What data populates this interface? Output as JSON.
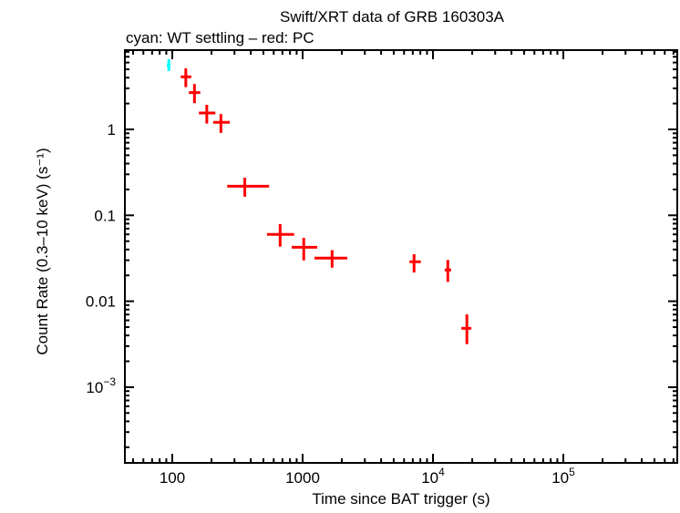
{
  "chart_data": {
    "type": "scatter",
    "title": "Swift/XRT data of GRB 160303A",
    "subtitle": "cyan: WT settling – red: PC",
    "xlabel": "Time since BAT trigger (s)",
    "ylabel": "Count Rate (0.3–10 keV) (s⁻¹)",
    "xscale": "log",
    "yscale": "log",
    "xlim": [
      43,
      750000
    ],
    "ylim": [
      0.00013,
      10.7
    ],
    "grid": false,
    "xticks": [
      {
        "v": 100,
        "label": "100"
      },
      {
        "v": 1000,
        "label": "1000"
      },
      {
        "v": 10000,
        "label": "10",
        "exp": "4"
      },
      {
        "v": 100000,
        "label": "10",
        "exp": "5"
      }
    ],
    "yticks": [
      {
        "v": 1,
        "label": "1"
      },
      {
        "v": 0.1,
        "label": "0.1"
      },
      {
        "v": 0.01,
        "label": "0.01"
      },
      {
        "v": 0.001,
        "label": "10",
        "exp": "−3"
      }
    ],
    "series": [
      {
        "color": "#00ffff",
        "points": [
          {
            "t": 94,
            "t_lo": 91,
            "t_hi": 97,
            "rate": 5.56,
            "rate_lo": 4.77,
            "rate_hi": 6.56
          }
        ]
      },
      {
        "color": "#ff0000",
        "points": [
          {
            "t": 127,
            "t_lo": 116,
            "t_hi": 140,
            "rate": 4.09,
            "rate_lo": 3.1,
            "rate_hi": 5.13
          },
          {
            "t": 148,
            "t_lo": 134,
            "t_hi": 164,
            "rate": 2.68,
            "rate_lo": 2.02,
            "rate_hi": 3.37
          },
          {
            "t": 184,
            "t_lo": 160,
            "t_hi": 214,
            "rate": 1.55,
            "rate_lo": 1.17,
            "rate_hi": 1.93
          },
          {
            "t": 236,
            "t_lo": 206,
            "t_hi": 276,
            "rate": 1.21,
            "rate_lo": 0.91,
            "rate_hi": 1.51
          },
          {
            "t": 360,
            "t_lo": 264,
            "t_hi": 553,
            "rate": 0.218,
            "rate_lo": 0.165,
            "rate_hi": 0.274
          },
          {
            "t": 672,
            "t_lo": 533,
            "t_hi": 861,
            "rate": 0.0599,
            "rate_lo": 0.0432,
            "rate_hi": 0.0789
          },
          {
            "t": 1020,
            "t_lo": 824,
            "t_hi": 1294,
            "rate": 0.0425,
            "rate_lo": 0.0299,
            "rate_hi": 0.0547
          },
          {
            "t": 1683,
            "t_lo": 1233,
            "t_hi": 2203,
            "rate": 0.0318,
            "rate_lo": 0.0246,
            "rate_hi": 0.0393
          },
          {
            "t": 7160,
            "t_lo": 6600,
            "t_hi": 8070,
            "rate": 0.0288,
            "rate_lo": 0.0216,
            "rate_hi": 0.0353
          },
          {
            "t": 13000,
            "t_lo": 12300,
            "t_hi": 13800,
            "rate": 0.0231,
            "rate_lo": 0.0168,
            "rate_hi": 0.0302
          },
          {
            "t": 18200,
            "t_lo": 16500,
            "t_hi": 19700,
            "rate": 0.00484,
            "rate_lo": 0.00317,
            "rate_hi": 0.00703
          }
        ]
      }
    ]
  }
}
